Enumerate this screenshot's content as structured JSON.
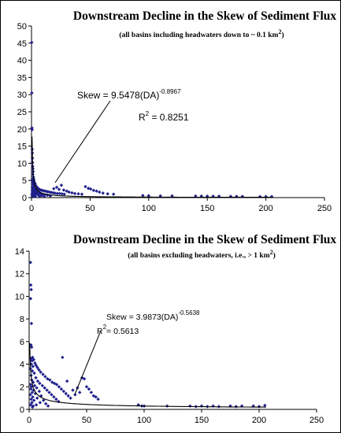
{
  "chart_data": [
    {
      "type": "scatter",
      "title": "Downstream Decline in the Skew of Sediment Flux",
      "subtitle_prefix": "(all basins including headwaters down to ~ 0.1 km",
      "subtitle_sup": "2",
      "subtitle_suffix": ")",
      "xlim": [
        0,
        250
      ],
      "ylim": [
        0,
        50
      ],
      "xticks": [
        "0",
        "50",
        "100",
        "150",
        "200",
        "250"
      ],
      "yticks": [
        "0",
        "5",
        "10",
        "15",
        "20",
        "25",
        "30",
        "35",
        "40",
        "45",
        "50"
      ],
      "grid": false,
      "legend": "none",
      "marker_color": "#1f1f8c",
      "line_color": "#000000",
      "annotation": {
        "eq_text": "Skew = 9.5478(DA)",
        "eq_exp": "-0.8967",
        "r2_label": "R",
        "r2_sup": "2",
        "r2_value": " = 0.8251"
      },
      "fit": {
        "a": 9.5478,
        "b": -0.8967
      },
      "points": [
        [
          0.2,
          45.2
        ],
        [
          0.3,
          30.5
        ],
        [
          0.4,
          20.3
        ],
        [
          0.5,
          19.8
        ],
        [
          0.6,
          14.1
        ],
        [
          0.7,
          13.0
        ],
        [
          0.8,
          11.5
        ],
        [
          0.9,
          10.2
        ],
        [
          1.0,
          9.1
        ],
        [
          1.2,
          8.4
        ],
        [
          1.4,
          7.6
        ],
        [
          1.1,
          6.8
        ],
        [
          1.6,
          6.0
        ],
        [
          1.8,
          5.5
        ],
        [
          0.5,
          5.2
        ],
        [
          2.1,
          5.0
        ],
        [
          1.3,
          4.6
        ],
        [
          2.6,
          4.4
        ],
        [
          0.9,
          4.1
        ],
        [
          3.1,
          4.0
        ],
        [
          1.7,
          3.7
        ],
        [
          3.6,
          3.5
        ],
        [
          2.3,
          3.3
        ],
        [
          4.2,
          3.2
        ],
        [
          0.7,
          3.0
        ],
        [
          4.9,
          2.9
        ],
        [
          1.9,
          2.8
        ],
        [
          5.6,
          2.7
        ],
        [
          2.8,
          2.6
        ],
        [
          6.3,
          2.5
        ],
        [
          1.4,
          2.4
        ],
        [
          7.1,
          2.3
        ],
        [
          3.4,
          2.3
        ],
        [
          8.0,
          2.2
        ],
        [
          0.6,
          2.2
        ],
        [
          9.0,
          2.1
        ],
        [
          2.4,
          2.0
        ],
        [
          10.2,
          2.0
        ],
        [
          4.1,
          1.9
        ],
        [
          11.5,
          1.9
        ],
        [
          1.2,
          1.8
        ],
        [
          12.8,
          1.8
        ],
        [
          5.2,
          1.7
        ],
        [
          14.0,
          1.7
        ],
        [
          0.8,
          1.6
        ],
        [
          15.5,
          1.6
        ],
        [
          2.9,
          1.5
        ],
        [
          17.0,
          1.5
        ],
        [
          6.4,
          1.4
        ],
        [
          18.5,
          1.4
        ],
        [
          1.6,
          1.3
        ],
        [
          20.0,
          1.3
        ],
        [
          3.7,
          1.3
        ],
        [
          22.0,
          1.2
        ],
        [
          7.6,
          1.2
        ],
        [
          24.0,
          1.2
        ],
        [
          0.4,
          1.1
        ],
        [
          26.0,
          1.1
        ],
        [
          2.2,
          1.0
        ],
        [
          28.0,
          1.0
        ],
        [
          4.8,
          1.0
        ],
        [
          9.3,
          0.9
        ],
        [
          1.0,
          0.9
        ],
        [
          11.0,
          0.8
        ],
        [
          3.0,
          0.8
        ],
        [
          13.5,
          0.7
        ],
        [
          5.9,
          0.7
        ],
        [
          0.5,
          0.6
        ],
        [
          8.5,
          0.6
        ],
        [
          2.0,
          0.5
        ],
        [
          16.0,
          0.5
        ],
        [
          6.8,
          0.4
        ],
        [
          1.5,
          0.4
        ],
        [
          10.8,
          0.3
        ],
        [
          3.3,
          0.3
        ],
        [
          19.0,
          2.6
        ],
        [
          21.5,
          3.0
        ],
        [
          23.5,
          2.4
        ],
        [
          25.5,
          3.6
        ],
        [
          27.5,
          2.2
        ],
        [
          30.0,
          1.9
        ],
        [
          32.0,
          1.6
        ],
        [
          34.5,
          1.4
        ],
        [
          37.0,
          1.2
        ],
        [
          40.0,
          1.1
        ],
        [
          43.0,
          1.0
        ],
        [
          46.0,
          3.2
        ],
        [
          48.5,
          2.7
        ],
        [
          50.5,
          2.5
        ],
        [
          53.0,
          2.1
        ],
        [
          55.5,
          1.9
        ],
        [
          58.0,
          1.6
        ],
        [
          61.0,
          1.3
        ],
        [
          65.0,
          1.1
        ],
        [
          70.0,
          1.0
        ],
        [
          95.0,
          0.6
        ],
        [
          100.0,
          0.55
        ],
        [
          110.0,
          0.5
        ],
        [
          120.0,
          0.5
        ],
        [
          140.0,
          0.45
        ],
        [
          145.0,
          0.45
        ],
        [
          150.0,
          0.4
        ],
        [
          155.0,
          0.4
        ],
        [
          160.0,
          0.4
        ],
        [
          170.0,
          0.35
        ],
        [
          175.0,
          0.35
        ],
        [
          180.0,
          0.35
        ],
        [
          195.0,
          0.3
        ],
        [
          200.0,
          0.3
        ],
        [
          205.0,
          0.3
        ]
      ]
    },
    {
      "type": "scatter",
      "title": "Downstream Decline in the Skew of Sediment Flux",
      "subtitle_prefix": "(all basins excluding headwaters, i.e., > 1 km",
      "subtitle_sup": "2",
      "subtitle_suffix": ")",
      "xlim": [
        0,
        250
      ],
      "ylim": [
        0,
        14
      ],
      "xticks": [
        "0",
        "50",
        "100",
        "150",
        "200",
        "250"
      ],
      "yticks": [
        "0",
        "2",
        "4",
        "6",
        "8",
        "10",
        "12",
        "14"
      ],
      "grid": false,
      "legend": "none",
      "marker_color": "#1f1f8c",
      "line_color": "#000000",
      "annotation": {
        "eq_text": "Skew = 3.9873(DA)",
        "eq_exp": "-0.5638",
        "r2_label": "R",
        "r2_sup": "2",
        "r2_value": "= 0.5613"
      },
      "fit": {
        "a": 3.9873,
        "b": -0.5638
      },
      "points": [
        [
          1.2,
          13.0
        ],
        [
          1.5,
          11.0
        ],
        [
          1.8,
          10.6
        ],
        [
          1.3,
          9.8
        ],
        [
          2.0,
          7.6
        ],
        [
          1.6,
          5.7
        ],
        [
          2.2,
          5.5
        ],
        [
          3.0,
          4.6
        ],
        [
          1.4,
          4.5
        ],
        [
          4.0,
          4.4
        ],
        [
          2.5,
          4.3
        ],
        [
          5.0,
          4.1
        ],
        [
          1.9,
          4.0
        ],
        [
          6.0,
          3.9
        ],
        [
          3.3,
          3.8
        ],
        [
          7.2,
          3.7
        ],
        [
          1.1,
          3.6
        ],
        [
          8.5,
          3.5
        ],
        [
          2.8,
          3.4
        ],
        [
          10.0,
          3.3
        ],
        [
          4.5,
          3.2
        ],
        [
          12.0,
          3.1
        ],
        [
          1.7,
          3.0
        ],
        [
          14.0,
          2.9
        ],
        [
          5.8,
          2.8
        ],
        [
          16.0,
          2.7
        ],
        [
          2.3,
          2.6
        ],
        [
          18.0,
          2.6
        ],
        [
          7.5,
          2.5
        ],
        [
          20.0,
          2.4
        ],
        [
          3.6,
          2.4
        ],
        [
          22.0,
          2.3
        ],
        [
          9.2,
          2.3
        ],
        [
          1.2,
          2.2
        ],
        [
          24.0,
          2.2
        ],
        [
          4.8,
          2.1
        ],
        [
          11.5,
          2.1
        ],
        [
          2.0,
          2.0
        ],
        [
          26.0,
          2.0
        ],
        [
          6.6,
          1.9
        ],
        [
          13.5,
          1.9
        ],
        [
          1.5,
          1.8
        ],
        [
          28.0,
          1.8
        ],
        [
          3.9,
          1.7
        ],
        [
          15.5,
          1.7
        ],
        [
          8.8,
          1.6
        ],
        [
          30.0,
          1.6
        ],
        [
          2.6,
          1.5
        ],
        [
          17.5,
          1.5
        ],
        [
          5.4,
          1.4
        ],
        [
          32.0,
          1.4
        ],
        [
          1.1,
          1.3
        ],
        [
          19.5,
          1.3
        ],
        [
          10.5,
          1.2
        ],
        [
          34.0,
          1.2
        ],
        [
          3.1,
          1.1
        ],
        [
          21.5,
          1.1
        ],
        [
          7.0,
          1.0
        ],
        [
          36.0,
          1.0
        ],
        [
          1.8,
          0.9
        ],
        [
          23.5,
          0.9
        ],
        [
          12.5,
          0.8
        ],
        [
          4.2,
          0.8
        ],
        [
          25.5,
          0.7
        ],
        [
          2.4,
          0.6
        ],
        [
          9.5,
          0.6
        ],
        [
          14.5,
          0.5
        ],
        [
          1.3,
          0.4
        ],
        [
          6.2,
          0.4
        ],
        [
          3.5,
          0.3
        ],
        [
          16.5,
          0.3
        ],
        [
          2.9,
          0.2
        ],
        [
          29.0,
          4.6
        ],
        [
          33.0,
          2.5
        ],
        [
          38.0,
          1.7
        ],
        [
          40.0,
          1.3
        ],
        [
          42.0,
          1.9
        ],
        [
          44.0,
          1.5
        ],
        [
          46.0,
          2.8
        ],
        [
          48.0,
          2.7
        ],
        [
          50.0,
          2.0
        ],
        [
          52.0,
          1.8
        ],
        [
          54.0,
          1.5
        ],
        [
          56.0,
          1.2
        ],
        [
          58.0,
          1.1
        ],
        [
          60.0,
          0.9
        ],
        [
          95.0,
          0.4
        ],
        [
          98.0,
          0.3
        ],
        [
          100.0,
          0.3
        ],
        [
          120.0,
          0.3
        ],
        [
          140.0,
          0.3
        ],
        [
          145.0,
          0.25
        ],
        [
          150.0,
          0.3
        ],
        [
          155.0,
          0.25
        ],
        [
          160.0,
          0.3
        ],
        [
          165.0,
          0.25
        ],
        [
          175.0,
          0.3
        ],
        [
          180.0,
          0.25
        ],
        [
          185.0,
          0.3
        ],
        [
          195.0,
          0.3
        ],
        [
          200.0,
          0.25
        ],
        [
          205.0,
          0.35
        ]
      ]
    }
  ]
}
